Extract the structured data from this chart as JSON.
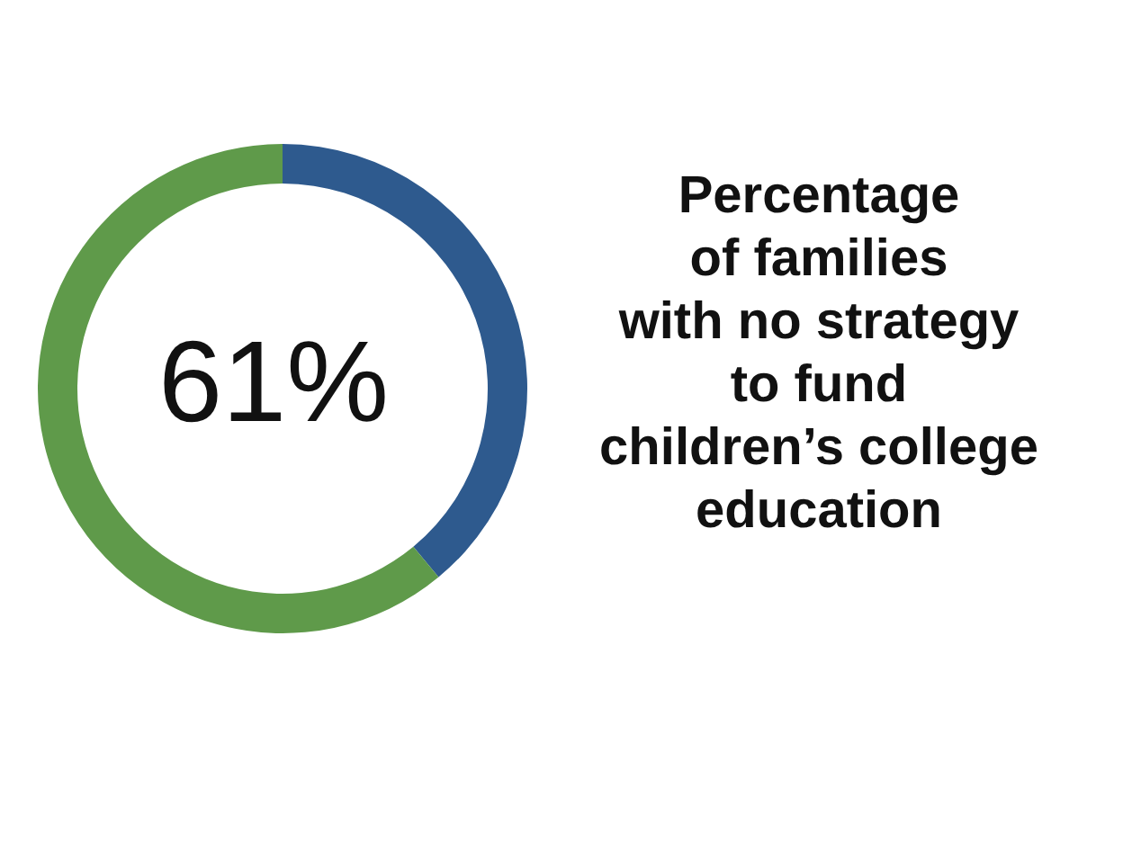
{
  "chart_data": {
    "type": "donut",
    "title": "Percentage\nof families\nwith no strategy\nto fund\nchildren’s college\neducation",
    "categories": [
      null,
      null
    ],
    "values": [
      39,
      61
    ],
    "colors": [
      "#2e5a8e",
      "#5f9a4a"
    ],
    "value_labels": [
      null,
      "61%"
    ],
    "legend": false
  }
}
